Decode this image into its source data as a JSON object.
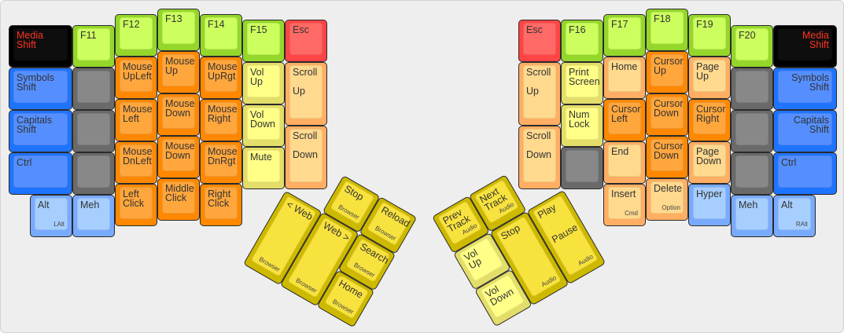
{
  "colors": {
    "green": [
      "#95d62b",
      "#ccff5e"
    ],
    "orange": [
      "#ff8800",
      "#ffa63d"
    ],
    "lightorange": [
      "#ffae63",
      "#ffd98e"
    ],
    "yellow": [
      "#e3dd6a",
      "#ffff88"
    ],
    "red": [
      "#ff4444",
      "#ff6a66"
    ],
    "blue": [
      "#1f74ff",
      "#558fff"
    ],
    "lightblue": [
      "#78aaff",
      "#a6ceff"
    ],
    "gray": [
      "#6a6a6a",
      "#888888"
    ],
    "black": [
      "#000000",
      "#0e0e0e"
    ],
    "thumb": [
      "#cdb900",
      "#f8e23e"
    ],
    "media_text": "#ff3322"
  },
  "left": {
    "keys": [
      {
        "label": "Media\nShift",
        "color": "black"
      },
      {
        "label": "Symbols\nShift",
        "color": "blue"
      },
      {
        "label": "Capitals\nShift",
        "color": "blue"
      },
      {
        "label": "Ctrl",
        "color": "blue"
      },
      {
        "label": "Alt",
        "sub": "LAlt",
        "color": "lightblue"
      },
      {
        "label": "F11",
        "color": "green"
      },
      {
        "label": "",
        "color": "gray"
      },
      {
        "label": "",
        "color": "gray"
      },
      {
        "label": "",
        "color": "gray"
      },
      {
        "label": "Meh",
        "color": "lightblue"
      },
      {
        "label": "F12",
        "color": "green"
      },
      {
        "label": "Mouse\nUpLeft",
        "color": "orange"
      },
      {
        "label": "Mouse\nLeft",
        "color": "orange"
      },
      {
        "label": "Mouse\nDnLeft",
        "color": "orange"
      },
      {
        "label": "Left\nClick",
        "color": "orange"
      },
      {
        "label": "F13",
        "color": "green"
      },
      {
        "label": "Mouse\nUp",
        "color": "orange"
      },
      {
        "label": "Mouse\nDown",
        "color": "orange"
      },
      {
        "label": "Mouse\nDown",
        "color": "orange"
      },
      {
        "label": "Middle\nClick",
        "color": "orange"
      },
      {
        "label": "F14",
        "color": "green"
      },
      {
        "label": "Mouse\nUpRgt",
        "color": "orange"
      },
      {
        "label": "Mouse\nRight",
        "color": "orange"
      },
      {
        "label": "Mouse\nDnRgt",
        "color": "orange"
      },
      {
        "label": "Right\nClick",
        "color": "orange"
      },
      {
        "label": "F15",
        "color": "green"
      },
      {
        "label": "Vol\nUp",
        "color": "yellow"
      },
      {
        "label": "Vol\nDown",
        "color": "yellow"
      },
      {
        "label": "Mute",
        "color": "yellow"
      },
      {
        "label": "Esc",
        "color": "red"
      },
      {
        "label": "Scroll\n\nUp",
        "color": "lightorange"
      },
      {
        "label": "Scroll\n\nDown",
        "color": "lightorange"
      }
    ],
    "thumb": [
      {
        "label": "Stop",
        "sub": "Browser",
        "color": "thumb"
      },
      {
        "label": "Reload",
        "sub": "Browser",
        "color": "thumb"
      },
      {
        "label": "< Web",
        "sub": "Browser",
        "color": "thumb"
      },
      {
        "label": "Web >",
        "sub": "Browser",
        "color": "thumb"
      },
      {
        "label": "Search",
        "sub": "Browser",
        "color": "thumb"
      },
      {
        "label": "Home",
        "sub": "Browser",
        "color": "thumb"
      }
    ]
  },
  "right": {
    "keys": [
      {
        "label": "Esc",
        "color": "red"
      },
      {
        "label": "Scroll\n\nUp",
        "color": "lightorange"
      },
      {
        "label": "Scroll\n\nDown",
        "color": "lightorange"
      },
      {
        "label": "F16",
        "color": "green"
      },
      {
        "label": "Print\nScreen",
        "color": "yellow"
      },
      {
        "label": "Num\nLock",
        "color": "yellow"
      },
      {
        "label": "",
        "color": "gray"
      },
      {
        "label": "F17",
        "color": "green"
      },
      {
        "label": "Home",
        "color": "lightorange"
      },
      {
        "label": "Cursor\nLeft",
        "color": "orange"
      },
      {
        "label": "End",
        "color": "lightorange"
      },
      {
        "label": "Insert",
        "sub": "Cmd",
        "color": "lightorange"
      },
      {
        "label": "F18",
        "color": "green"
      },
      {
        "label": "Cursor\nUp",
        "color": "orange"
      },
      {
        "label": "Cursor\nDown",
        "color": "orange"
      },
      {
        "label": "Cursor\nDown",
        "color": "orange"
      },
      {
        "label": "Delete",
        "sub": "Option",
        "color": "lightorange"
      },
      {
        "label": "F19",
        "color": "green"
      },
      {
        "label": "Page\nUp",
        "color": "lightorange"
      },
      {
        "label": "Cursor\nRight",
        "color": "orange"
      },
      {
        "label": "Page\nDown",
        "color": "lightorange"
      },
      {
        "label": "Hyper",
        "color": "lightblue"
      },
      {
        "label": "F20",
        "color": "green"
      },
      {
        "label": "",
        "color": "gray"
      },
      {
        "label": "",
        "color": "gray"
      },
      {
        "label": "",
        "color": "gray"
      },
      {
        "label": "Meh",
        "color": "lightblue"
      },
      {
        "label": "Media\nShift",
        "color": "black"
      },
      {
        "label": "Symbols\nShift",
        "color": "blue"
      },
      {
        "label": "Capitals\nShift",
        "color": "blue"
      },
      {
        "label": "Ctrl",
        "color": "blue"
      },
      {
        "label": "Alt",
        "sub": "RAlt",
        "color": "lightblue"
      }
    ],
    "thumb": [
      {
        "label": "Prev\nTrack",
        "sub": "Audio",
        "color": "thumb"
      },
      {
        "label": "Next\nTrack",
        "sub": "Audio",
        "color": "thumb"
      },
      {
        "label": "Vol\nUp",
        "color": "yellow"
      },
      {
        "label": "Stop",
        "sub": "Audio",
        "color": "thumb"
      },
      {
        "label": "Play\n\n\nPause",
        "sub": "Audio",
        "color": "thumb"
      },
      {
        "label": "Vol\nDown",
        "color": "yellow"
      }
    ]
  }
}
